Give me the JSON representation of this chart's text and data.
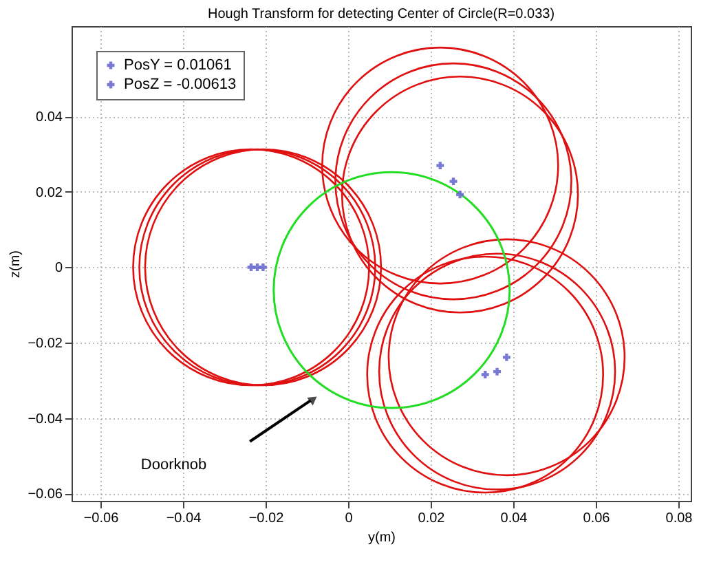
{
  "chart_data": {
    "type": "scatter",
    "title": "Hough Transform for detecting Center of Circle(R=0.033)",
    "xlabel": "y(m)",
    "ylabel": "z(m)",
    "xlim": [
      -0.067,
      0.083
    ],
    "ylim": [
      -0.062,
      0.064
    ],
    "xticks": [
      -0.06,
      -0.04,
      -0.02,
      0,
      0.02,
      0.04,
      0.06,
      0.08
    ],
    "yticks": [
      -0.06,
      -0.04,
      -0.02,
      0,
      0.02,
      0.04
    ],
    "grid": true,
    "legend": "top left",
    "marker": "cross",
    "annotations": [
      "Doorknob"
    ],
    "series": [
      {
        "name": "PosY = 0.01061",
        "color": "#6a6ad0",
        "x": [
          -0.0235,
          -0.022,
          -0.0206,
          0.0223,
          0.0255,
          0.0271
        ],
        "values": [
          0,
          0,
          0,
          0.027,
          0.0228,
          0.0193
        ]
      },
      {
        "name": "PosZ = -0.00613",
        "color": "#6a6ad0",
        "x": [
          0.0384,
          0.0361,
          0.0332
        ],
        "values": [
          -0.0239,
          -0.0277,
          -0.0285
        ]
      }
    ]
  }
}
